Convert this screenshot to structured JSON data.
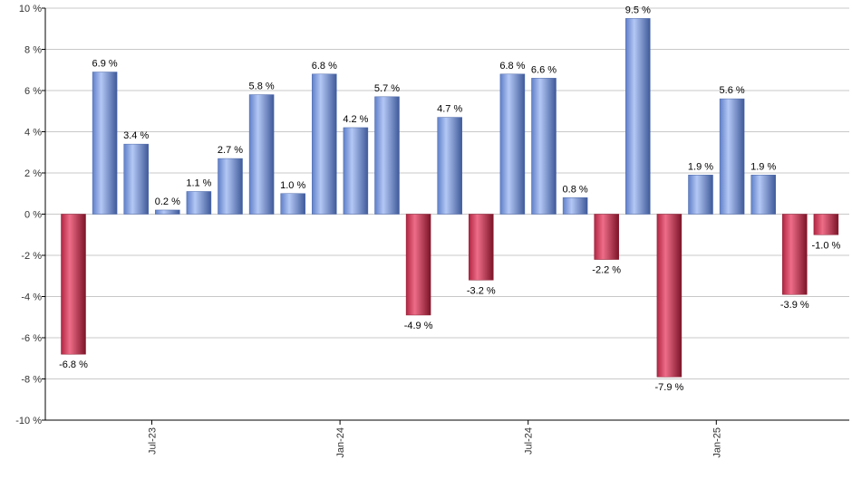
{
  "chart_data": {
    "type": "bar",
    "y_unit_suffix": " %",
    "ylim": [
      -10,
      10
    ],
    "yticks": [
      -10,
      -8,
      -6,
      -4,
      -2,
      0,
      2,
      4,
      6,
      8,
      10
    ],
    "grid": true,
    "values": [
      -6.8,
      6.9,
      3.4,
      0.2,
      1.1,
      2.7,
      5.8,
      1.0,
      6.8,
      4.2,
      5.7,
      -4.9,
      4.7,
      -3.2,
      6.8,
      6.6,
      0.8,
      -2.2,
      9.5,
      -7.9,
      1.9,
      5.6,
      1.9,
      -3.9,
      -1.0
    ],
    "data_labels": [
      "-6.8 %",
      "6.9 %",
      "3.4 %",
      "0.2 %",
      "1.1 %",
      "2.7 %",
      "5.8 %",
      "1.0 %",
      "6.8 %",
      "4.2 %",
      "5.7 %",
      "-4.9 %",
      "4.7 %",
      "-3.2 %",
      "6.8 %",
      "6.6 %",
      "0.8 %",
      "-2.2 %",
      "9.5 %",
      "-7.9 %",
      "1.9 %",
      "5.6 %",
      "1.9 %",
      "-3.9 %",
      "-1.0 %"
    ],
    "x_tick_labels": [
      {
        "label": "Jul-23",
        "index": 2.5
      },
      {
        "label": "Jan-24",
        "index": 8.5
      },
      {
        "label": "Jul-24",
        "index": 14.5
      },
      {
        "label": "Jan-25",
        "index": 20.5
      }
    ],
    "colors": {
      "positive": "#7b9be0",
      "positive_light": "#b4c8f5",
      "positive_dark": "#4a67a8",
      "negative": "#c0304d",
      "negative_light": "#e86a84",
      "negative_dark": "#8a1a30",
      "grid": "#c8c8c8",
      "axis": "#000000"
    }
  }
}
